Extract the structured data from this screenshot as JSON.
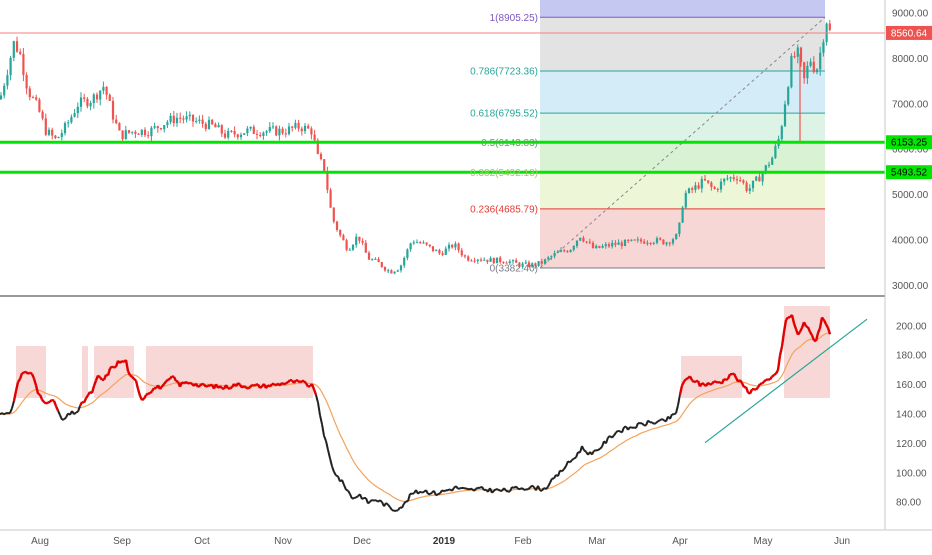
{
  "colors": {
    "up": "#26a69a",
    "down": "#ef5350",
    "green_line": "#00e600",
    "price_line": "#f57f7f",
    "price_label_bg": "#ef5350",
    "level_label_bg": "#00e600",
    "ema": "#f5a25a",
    "trend": "#26a69a",
    "axis_text": "#555555",
    "divider": "#333333"
  },
  "chart_data": [
    {
      "type": "candlestick",
      "title": "",
      "y_range": [
        2800,
        9200
      ],
      "y_ticks": [
        "3000.00",
        "4000.00",
        "5000.00",
        "6000.00",
        "7000.00",
        "8000.00",
        "9000.00"
      ],
      "last_price_label": "8560.64",
      "green_level_labels": [
        "6153.25",
        "5493.52"
      ],
      "fib_labels": [
        "1(8905.25)",
        "0.786(7723.36)",
        "0.618(6795.52)",
        "0.5(6143.83)",
        "0.382(5492.13)",
        "0.236(4685.79)",
        "0(3382.40)"
      ],
      "fib_levels": [
        8905.25,
        7723.36,
        6795.52,
        6143.83,
        5492.13,
        4685.79,
        3382.4
      ],
      "fib_colors": [
        "#7e57c2",
        "#26a69a",
        "#26a69a",
        "#4caf50",
        "#9ccc65",
        "#e53935",
        "#787b86"
      ],
      "fib_zone_colors": [
        "#c5c9f2",
        "#e3e3e3",
        "#d4ecf7",
        "#dcf3e6",
        "#d8f2d3",
        "#eef6d8",
        "#f7d6d6"
      ],
      "horizontal_levels": [
        6153.25,
        5493.52
      ],
      "price_line": 8560.64
    },
    {
      "type": "line",
      "y_range": [
        70,
        220
      ],
      "y_ticks": [
        "80.00",
        "100.00",
        "120.00",
        "140.00",
        "160.00",
        "180.00",
        "200.00"
      ]
    }
  ],
  "x_axis_labels": [
    "Aug",
    "Sep",
    "Oct",
    "Nov",
    "Dec",
    "2019",
    "Feb",
    "Mar",
    "Apr",
    "May",
    "Jun"
  ]
}
